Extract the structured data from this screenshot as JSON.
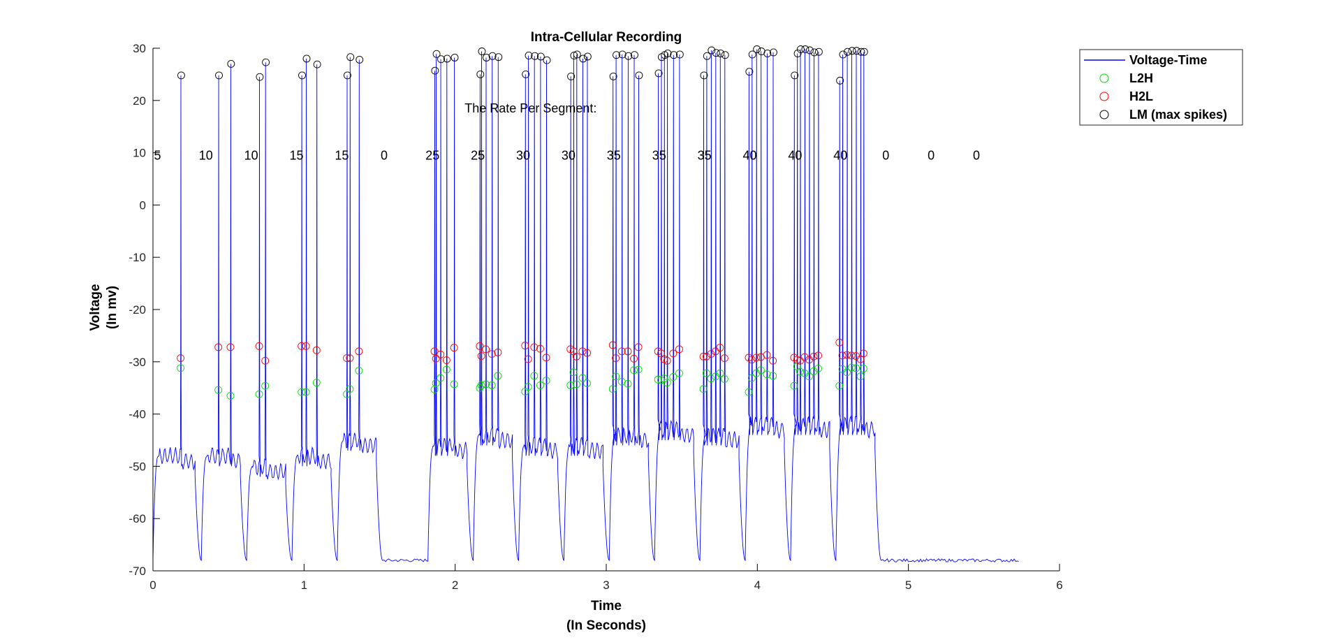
{
  "chart_data": {
    "type": "line",
    "title": "Intra-Cellular Recording",
    "xlabel": [
      "Time",
      "(In Seconds)"
    ],
    "ylabel": [
      "Voltage",
      "(In mv)"
    ],
    "xlim": [
      0,
      6
    ],
    "ylim": [
      -70,
      30
    ],
    "xticks": [
      0,
      1,
      2,
      3,
      4,
      5,
      6
    ],
    "yticks": [
      -70,
      -60,
      -50,
      -40,
      -30,
      -20,
      -10,
      0,
      10,
      20,
      30
    ],
    "grid": false,
    "legend": {
      "placement": "top-right-outside",
      "entries": [
        {
          "label": "Voltage-Time",
          "style": "line",
          "color": "#0000ff"
        },
        {
          "label": "L2H",
          "style": "circle",
          "color": "#00dd00"
        },
        {
          "label": "H2L",
          "style": "circle",
          "color": "#ff0000"
        },
        {
          "label": "LM (max spikes)",
          "style": "circle",
          "color": "#000000"
        }
      ]
    },
    "annotation": {
      "text": "The Rate Per Segment:",
      "x": 2.5,
      "y": 18.5
    },
    "rate_labels": {
      "y": 9.5,
      "values": [
        5,
        10,
        10,
        15,
        15,
        0,
        25,
        25,
        30,
        30,
        35,
        35,
        35,
        40,
        40,
        40,
        0,
        0,
        0
      ],
      "x": [
        0.03,
        0.35,
        0.65,
        0.95,
        1.25,
        1.53,
        1.85,
        2.15,
        2.45,
        2.75,
        3.05,
        3.35,
        3.65,
        3.95,
        4.25,
        4.55,
        4.85,
        5.15,
        5.45
      ]
    },
    "segments": [
      {
        "t0": 0.0,
        "t1": 0.32,
        "spikes": [
          0.185
        ],
        "peaks": [
          24.8
        ],
        "l2h": [
          -31.2
        ],
        "h2l": [
          -29.3
        ],
        "plateau": -48
      },
      {
        "t0": 0.32,
        "t1": 0.62,
        "spikes": [
          0.435,
          0.515
        ],
        "peaks": [
          24.8,
          27.0
        ],
        "l2h": [
          -35.4,
          -36.5
        ],
        "h2l": [
          -27.2,
          -27.2
        ],
        "plateau": -48
      },
      {
        "t0": 0.62,
        "t1": 0.92,
        "spikes": [
          0.705,
          0.745
        ],
        "peaks": [
          24.5,
          27.3
        ],
        "l2h": [
          -36.2,
          -34.6
        ],
        "h2l": [
          -27.0,
          -29.8
        ],
        "plateau": -50
      },
      {
        "t0": 0.92,
        "t1": 1.22,
        "spikes": [
          0.985,
          1.015,
          1.085
        ],
        "peaks": [
          24.8,
          28.0,
          26.9
        ],
        "l2h": [
          -35.8,
          -35.8,
          -34.0
        ],
        "h2l": [
          -27.0,
          -27.0,
          -27.8
        ],
        "plateau": -48
      },
      {
        "t0": 1.22,
        "t1": 1.52,
        "spikes": [
          1.285,
          1.305,
          1.365
        ],
        "peaks": [
          24.8,
          28.3,
          27.8
        ],
        "l2h": [
          -36.2,
          -35.2,
          -31.7
        ],
        "h2l": [
          -29.3,
          -29.3,
          -28.0
        ],
        "plateau": -45
      },
      {
        "t0": 1.82,
        "t1": 2.12,
        "spikes": [
          1.865,
          1.875,
          1.905,
          1.945,
          1.995
        ],
        "peaks": [
          25.7,
          28.9,
          27.9,
          28.0,
          28.2
        ],
        "l2h": [
          -35.3,
          -34.1,
          -33.1,
          -31.5,
          -34.3
        ],
        "h2l": [
          -28.0,
          -29.4,
          -28.6,
          -29.7,
          -27.3
        ],
        "plateau": -46
      },
      {
        "t0": 2.12,
        "t1": 2.42,
        "spikes": [
          2.165,
          2.175,
          2.205,
          2.245,
          2.285
        ],
        "peaks": [
          25.0,
          29.4,
          28.2,
          28.5,
          28.3
        ],
        "l2h": [
          -35.0,
          -34.5,
          -34.3,
          -34.5,
          -32.7
        ],
        "h2l": [
          -27.0,
          -28.9,
          -27.6,
          -28.5,
          -28.2
        ],
        "plateau": -44
      },
      {
        "t0": 2.42,
        "t1": 2.72,
        "spikes": [
          2.465,
          2.485,
          2.525,
          2.565,
          2.605
        ],
        "peaks": [
          25.0,
          28.6,
          28.5,
          28.4,
          27.7
        ],
        "l2h": [
          -35.7,
          -34.8,
          -32.7,
          -34.5,
          -33.6
        ],
        "h2l": [
          -26.9,
          -29.5,
          -27.2,
          -27.5,
          -29.2
        ],
        "plateau": -46
      },
      {
        "t0": 2.72,
        "t1": 3.02,
        "spikes": [
          2.765,
          2.785,
          2.805,
          2.845,
          2.875
        ],
        "peaks": [
          24.6,
          28.6,
          28.8,
          28.0,
          28.4
        ],
        "l2h": [
          -34.5,
          -32.0,
          -34.3,
          -33.1,
          -34.1
        ],
        "h2l": [
          -27.6,
          -28.0,
          -29.0,
          -28.0,
          -28.3
        ],
        "plateau": -46
      },
      {
        "t0": 3.02,
        "t1": 3.32,
        "spikes": [
          3.045,
          3.065,
          3.105,
          3.145,
          3.185,
          3.215
        ],
        "peaks": [
          24.6,
          28.7,
          28.8,
          28.5,
          28.7,
          24.8
        ],
        "l2h": [
          -35.2,
          -32.8,
          -33.8,
          -34.2,
          -31.6,
          -31.5
        ],
        "h2l": [
          -26.8,
          -29.3,
          -28.0,
          -28.0,
          -29.4,
          -27.2
        ],
        "plateau": -44
      },
      {
        "t0": 3.32,
        "t1": 3.62,
        "spikes": [
          3.345,
          3.365,
          3.385,
          3.405,
          3.445,
          3.485
        ],
        "peaks": [
          25.2,
          28.3,
          28.7,
          29.0,
          28.7,
          28.8
        ],
        "l2h": [
          -33.4,
          -33.5,
          -33.2,
          -34.0,
          -32.9,
          -32.2
        ],
        "h2l": [
          -28.0,
          -28.4,
          -29.5,
          -29.8,
          -28.4,
          -27.6
        ],
        "plateau": -43
      },
      {
        "t0": 3.62,
        "t1": 3.92,
        "spikes": [
          3.645,
          3.665,
          3.695,
          3.725,
          3.755,
          3.785
        ],
        "peaks": [
          24.8,
          28.5,
          29.6,
          29.1,
          29.0,
          28.7
        ],
        "l2h": [
          -35.2,
          -32.2,
          -33.2,
          -32.8,
          -32.2,
          -33.3
        ],
        "h2l": [
          -29.0,
          -29.0,
          -28.5,
          -28.0,
          -27.3,
          -29.3
        ],
        "plateau": -44
      },
      {
        "t0": 3.92,
        "t1": 4.22,
        "spikes": [
          3.945,
          3.965,
          3.995,
          4.025,
          4.065,
          4.105
        ],
        "peaks": [
          25.5,
          28.8,
          29.8,
          29.4,
          29.0,
          29.2
        ],
        "l2h": [
          -35.8,
          -33.1,
          -32.2,
          -31.6,
          -32.4,
          -32.7
        ],
        "h2l": [
          -29.2,
          -29.6,
          -29.2,
          -29.1,
          -28.7,
          -29.8
        ],
        "plateau": -42
      },
      {
        "t0": 4.22,
        "t1": 4.52,
        "spikes": [
          4.245,
          4.265,
          4.285,
          4.315,
          4.345,
          4.375,
          4.405
        ],
        "peaks": [
          24.8,
          29.0,
          29.8,
          29.8,
          29.6,
          29.2,
          29.3
        ],
        "l2h": [
          -34.6,
          -30.9,
          -31.9,
          -32.2,
          -32.8,
          -31.8,
          -31.3
        ],
        "h2l": [
          -29.2,
          -29.6,
          -29.8,
          -29.1,
          -29.6,
          -29.0,
          -28.8
        ],
        "plateau": -42
      },
      {
        "t0": 4.52,
        "t1": 4.82,
        "spikes": [
          4.545,
          4.565,
          4.595,
          4.625,
          4.655,
          4.685,
          4.705
        ],
        "peaks": [
          23.8,
          28.8,
          29.3,
          29.5,
          29.5,
          29.3,
          29.3
        ],
        "l2h": [
          -34.6,
          -31.4,
          -32.0,
          -31.1,
          -31.2,
          -32.8,
          -31.3
        ],
        "h2l": [
          -26.3,
          -28.8,
          -28.7,
          -28.8,
          -28.9,
          -29.5,
          -28.4
        ],
        "plateau": -42
      }
    ]
  }
}
